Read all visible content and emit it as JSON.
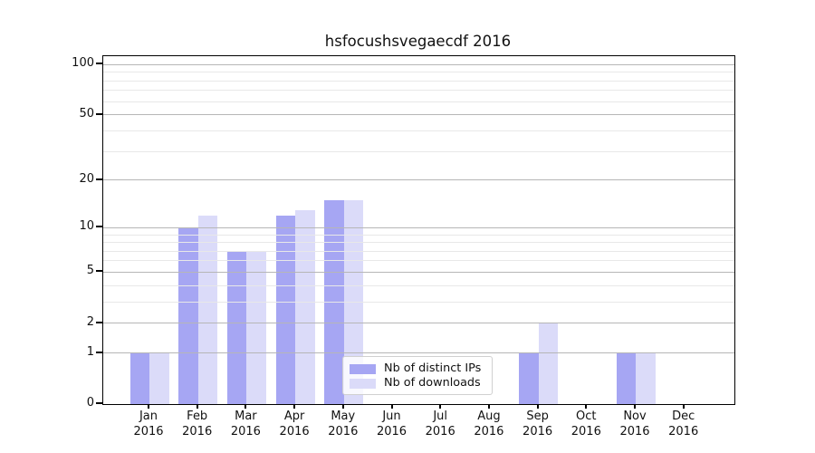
{
  "title": "hsfocushsvegaecdf 2016",
  "chart_data": {
    "type": "bar",
    "title": "hsfocushsvegaecdf 2016",
    "categories": [
      "Jan",
      "Feb",
      "Mar",
      "Apr",
      "May",
      "Jun",
      "Jul",
      "Aug",
      "Sep",
      "Oct",
      "Nov",
      "Dec"
    ],
    "category_year_label": "2016",
    "series": [
      {
        "name": "Nb of distinct IPs",
        "color": "#a6a6f3",
        "values": [
          1,
          10,
          7,
          12,
          15,
          0,
          0,
          0,
          1,
          0,
          1,
          0
        ]
      },
      {
        "name": "Nb of downloads",
        "color": "#dbdbf9",
        "values": [
          1,
          12,
          7,
          13,
          15,
          0,
          0,
          0,
          2,
          0,
          1,
          0
        ]
      }
    ],
    "xlabel": "",
    "ylabel": "",
    "yscale": "log(1+x)",
    "ylim": [
      0,
      112
    ],
    "y_major_ticks": [
      0,
      1,
      2,
      5,
      10,
      20,
      50,
      100
    ],
    "y_minor_gridlines": [
      3,
      4,
      6,
      7,
      8,
      9,
      30,
      40,
      60,
      70,
      80,
      90
    ],
    "grid": "horizontal, major and minor, drawn over bars",
    "legend_position": "inside lower center, semi-transparent white box"
  },
  "colors": {
    "background": "#ffffff",
    "axis_frame": "#000000",
    "text": "#111111",
    "grid_major": "#b6b6b6",
    "grid_minor": "#e8e8e8",
    "legend_border": "#d0d0d0"
  }
}
